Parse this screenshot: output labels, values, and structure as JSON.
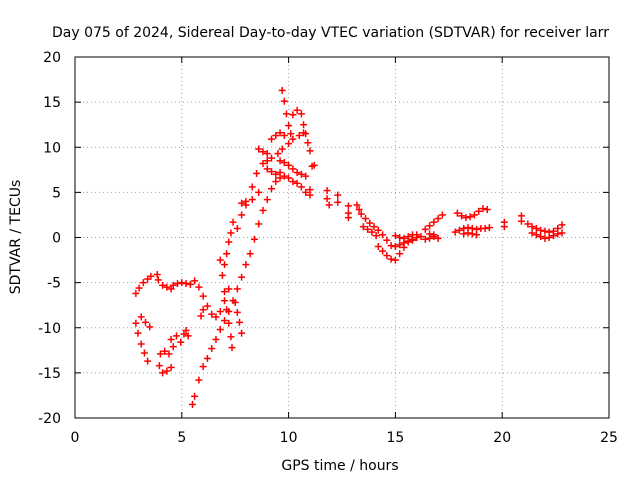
{
  "chart_data": {
    "type": "scatter",
    "title": "Day 075 of 2024, Sidereal Day-to-day VTEC variation (SDTVAR) for receiver larr",
    "xlabel": "GPS time / hours",
    "ylabel": "SDTVAR / TECUs",
    "xlim": [
      0,
      25
    ],
    "ylim": [
      -20,
      20
    ],
    "xticks": [
      0,
      5,
      10,
      15,
      20,
      25
    ],
    "yticks": [
      -20,
      -15,
      -10,
      -5,
      0,
      5,
      10,
      15,
      20
    ],
    "grid": true,
    "marker": "+",
    "color": "#ff0000",
    "series": [
      {
        "points": [
          [
            2.85,
            -6.2
          ],
          [
            3.0,
            -5.6
          ],
          [
            3.2,
            -5.0
          ],
          [
            3.4,
            -4.6
          ],
          [
            3.55,
            -4.3
          ],
          [
            2.85,
            -9.5
          ],
          [
            2.95,
            -10.6
          ],
          [
            3.1,
            -11.8
          ],
          [
            3.25,
            -12.8
          ],
          [
            3.4,
            -13.7
          ],
          [
            3.1,
            -8.8
          ],
          [
            3.3,
            -9.4
          ],
          [
            3.5,
            -9.9
          ],
          [
            3.85,
            -4.1
          ],
          [
            3.9,
            -4.7
          ],
          [
            3.95,
            -14.2
          ],
          [
            4.1,
            -15.0
          ],
          [
            4.3,
            -14.8
          ],
          [
            4.5,
            -14.4
          ],
          [
            4.0,
            -12.9
          ],
          [
            4.2,
            -12.6
          ],
          [
            4.4,
            -12.9
          ],
          [
            4.1,
            -5.3
          ],
          [
            4.3,
            -5.5
          ],
          [
            4.5,
            -5.7
          ],
          [
            4.6,
            -5.3
          ],
          [
            4.8,
            -5.1
          ],
          [
            5.0,
            -5.0
          ],
          [
            5.2,
            -5.1
          ],
          [
            5.4,
            -5.2
          ],
          [
            4.5,
            -11.3
          ],
          [
            4.6,
            -12.1
          ],
          [
            4.75,
            -10.9
          ],
          [
            4.95,
            -11.6
          ],
          [
            5.1,
            -10.7
          ],
          [
            5.2,
            -10.3
          ],
          [
            5.3,
            -10.9
          ],
          [
            5.5,
            -18.5
          ],
          [
            5.6,
            -17.6
          ],
          [
            5.8,
            -15.8
          ],
          [
            6.0,
            -14.3
          ],
          [
            6.2,
            -13.4
          ],
          [
            6.4,
            -12.3
          ],
          [
            6.6,
            -11.3
          ],
          [
            6.8,
            -10.2
          ],
          [
            7.0,
            -9.2
          ],
          [
            7.2,
            -8.2
          ],
          [
            7.4,
            -7.0
          ],
          [
            7.6,
            -5.7
          ],
          [
            7.8,
            -4.4
          ],
          [
            8.0,
            -3.0
          ],
          [
            8.2,
            -1.8
          ],
          [
            8.4,
            -0.2
          ],
          [
            8.6,
            1.5
          ],
          [
            8.8,
            3.0
          ],
          [
            9.0,
            4.2
          ],
          [
            9.2,
            5.4
          ],
          [
            9.4,
            6.2
          ],
          [
            9.6,
            6.6
          ],
          [
            9.8,
            6.8
          ],
          [
            10.0,
            6.6
          ],
          [
            10.2,
            6.2
          ],
          [
            10.4,
            6.0
          ],
          [
            10.6,
            5.6
          ],
          [
            10.8,
            5.0
          ],
          [
            5.6,
            -4.8
          ],
          [
            5.8,
            -5.5
          ],
          [
            6.0,
            -6.5
          ],
          [
            6.2,
            -7.6
          ],
          [
            6.4,
            -8.5
          ],
          [
            6.6,
            -8.8
          ],
          [
            6.8,
            -8.2
          ],
          [
            7.0,
            -7.0
          ],
          [
            7.2,
            -5.7
          ],
          [
            5.9,
            -8.7
          ],
          [
            6.0,
            -8.0
          ],
          [
            6.8,
            -2.5
          ],
          [
            6.9,
            -4.2
          ],
          [
            7.0,
            -6.0
          ],
          [
            7.1,
            -8.0
          ],
          [
            7.2,
            -9.5
          ],
          [
            7.3,
            -11.0
          ],
          [
            7.35,
            -12.2
          ],
          [
            7.0,
            -3.0
          ],
          [
            7.1,
            -1.8
          ],
          [
            7.2,
            -0.5
          ],
          [
            7.3,
            0.5
          ],
          [
            7.4,
            1.7
          ],
          [
            7.5,
            -7.2
          ],
          [
            7.6,
            -8.3
          ],
          [
            7.7,
            -9.4
          ],
          [
            7.8,
            -10.6
          ],
          [
            7.6,
            1.0
          ],
          [
            7.8,
            2.5
          ],
          [
            8.0,
            4.0
          ],
          [
            8.3,
            5.6
          ],
          [
            8.5,
            7.1
          ],
          [
            8.8,
            8.2
          ],
          [
            9.0,
            8.5
          ],
          [
            9.2,
            8.8
          ],
          [
            9.5,
            9.3
          ],
          [
            9.7,
            9.8
          ],
          [
            10.0,
            10.4
          ],
          [
            10.2,
            10.9
          ],
          [
            10.5,
            11.3
          ],
          [
            10.7,
            11.6
          ],
          [
            7.8,
            3.8
          ],
          [
            8.0,
            3.6
          ],
          [
            8.3,
            4.2
          ],
          [
            8.6,
            5.0
          ],
          [
            8.6,
            9.8
          ],
          [
            8.8,
            9.5
          ],
          [
            9.0,
            9.3
          ],
          [
            9.7,
            16.3
          ],
          [
            9.8,
            15.1
          ],
          [
            9.9,
            13.7
          ],
          [
            10.0,
            12.4
          ],
          [
            10.1,
            11.5
          ],
          [
            10.2,
            13.6
          ],
          [
            10.4,
            14.1
          ],
          [
            10.6,
            13.7
          ],
          [
            10.7,
            12.5
          ],
          [
            10.8,
            11.5
          ],
          [
            10.9,
            10.5
          ],
          [
            11.0,
            9.6
          ],
          [
            9.2,
            10.9
          ],
          [
            9.4,
            11.3
          ],
          [
            9.6,
            11.6
          ],
          [
            9.8,
            11.3
          ],
          [
            9.6,
            8.5
          ],
          [
            9.8,
            8.3
          ],
          [
            10.0,
            8.0
          ],
          [
            10.2,
            7.6
          ],
          [
            10.4,
            7.2
          ],
          [
            10.6,
            7.0
          ],
          [
            10.8,
            6.8
          ],
          [
            9.0,
            7.6
          ],
          [
            9.2,
            7.3
          ],
          [
            9.4,
            7.0
          ],
          [
            9.6,
            7.2
          ],
          [
            11.0,
            5.3
          ],
          [
            11.0,
            4.7
          ],
          [
            11.1,
            7.9
          ],
          [
            11.2,
            8.0
          ],
          [
            11.8,
            5.2
          ],
          [
            11.8,
            4.3
          ],
          [
            11.9,
            3.6
          ],
          [
            12.3,
            4.7
          ],
          [
            12.3,
            3.9
          ],
          [
            12.8,
            3.5
          ],
          [
            12.8,
            2.7
          ],
          [
            12.8,
            2.2
          ],
          [
            13.2,
            3.6
          ],
          [
            13.3,
            3.1
          ],
          [
            13.4,
            2.6
          ],
          [
            13.6,
            2.1
          ],
          [
            13.8,
            1.6
          ],
          [
            14.0,
            1.2
          ],
          [
            14.2,
            0.8
          ],
          [
            14.4,
            0.3
          ],
          [
            14.6,
            -0.3
          ],
          [
            14.8,
            -0.9
          ],
          [
            13.5,
            1.2
          ],
          [
            13.7,
            0.9
          ],
          [
            13.9,
            0.6
          ],
          [
            14.1,
            0.2
          ],
          [
            14.2,
            -1.0
          ],
          [
            14.4,
            -1.5
          ],
          [
            14.6,
            -2.0
          ],
          [
            14.8,
            -2.4
          ],
          [
            15.0,
            -2.5
          ],
          [
            15.2,
            -1.8
          ],
          [
            15.4,
            -1.1
          ],
          [
            15.6,
            -0.5
          ],
          [
            15.8,
            -0.2
          ],
          [
            16.0,
            0.0
          ],
          [
            15.0,
            -1.0
          ],
          [
            15.2,
            -0.8
          ],
          [
            15.4,
            -0.6
          ],
          [
            15.6,
            -0.4
          ],
          [
            15.8,
            -0.3
          ],
          [
            15.0,
            0.2
          ],
          [
            15.2,
            0.0
          ],
          [
            15.4,
            -0.1
          ],
          [
            15.6,
            0.1
          ],
          [
            15.8,
            0.3
          ],
          [
            16.0,
            0.3
          ],
          [
            16.2,
            0.1
          ],
          [
            16.4,
            -0.2
          ],
          [
            16.6,
            -0.1
          ],
          [
            16.8,
            0.3
          ],
          [
            16.4,
            0.9
          ],
          [
            16.6,
            1.3
          ],
          [
            16.8,
            1.7
          ],
          [
            17.0,
            2.1
          ],
          [
            17.2,
            2.5
          ],
          [
            16.6,
            0.4
          ],
          [
            16.8,
            0.1
          ],
          [
            17.0,
            -0.1
          ],
          [
            17.8,
            0.6
          ],
          [
            18.0,
            0.8
          ],
          [
            18.2,
            1.0
          ],
          [
            18.4,
            1.1
          ],
          [
            18.6,
            1.0
          ],
          [
            18.8,
            0.9
          ],
          [
            19.0,
            1.0
          ],
          [
            19.2,
            1.0
          ],
          [
            19.4,
            1.1
          ],
          [
            17.9,
            2.7
          ],
          [
            18.1,
            2.4
          ],
          [
            18.3,
            2.2
          ],
          [
            18.5,
            2.3
          ],
          [
            18.7,
            2.5
          ],
          [
            18.9,
            2.9
          ],
          [
            19.1,
            3.2
          ],
          [
            19.3,
            3.1
          ],
          [
            18.2,
            0.4
          ],
          [
            18.4,
            0.5
          ],
          [
            18.6,
            0.4
          ],
          [
            18.8,
            0.3
          ],
          [
            20.1,
            1.7
          ],
          [
            20.1,
            1.2
          ],
          [
            20.9,
            2.4
          ],
          [
            20.9,
            1.8
          ],
          [
            21.2,
            1.5
          ],
          [
            21.4,
            1.2
          ],
          [
            21.6,
            1.0
          ],
          [
            21.8,
            0.8
          ],
          [
            22.0,
            0.7
          ],
          [
            22.2,
            0.6
          ],
          [
            22.4,
            0.7
          ],
          [
            22.6,
            1.0
          ],
          [
            22.8,
            1.4
          ],
          [
            21.4,
            0.5
          ],
          [
            21.6,
            0.3
          ],
          [
            21.8,
            0.1
          ],
          [
            22.0,
            -0.1
          ],
          [
            22.2,
            0.0
          ],
          [
            22.4,
            0.2
          ],
          [
            22.6,
            0.4
          ],
          [
            22.8,
            0.5
          ]
        ]
      }
    ]
  }
}
